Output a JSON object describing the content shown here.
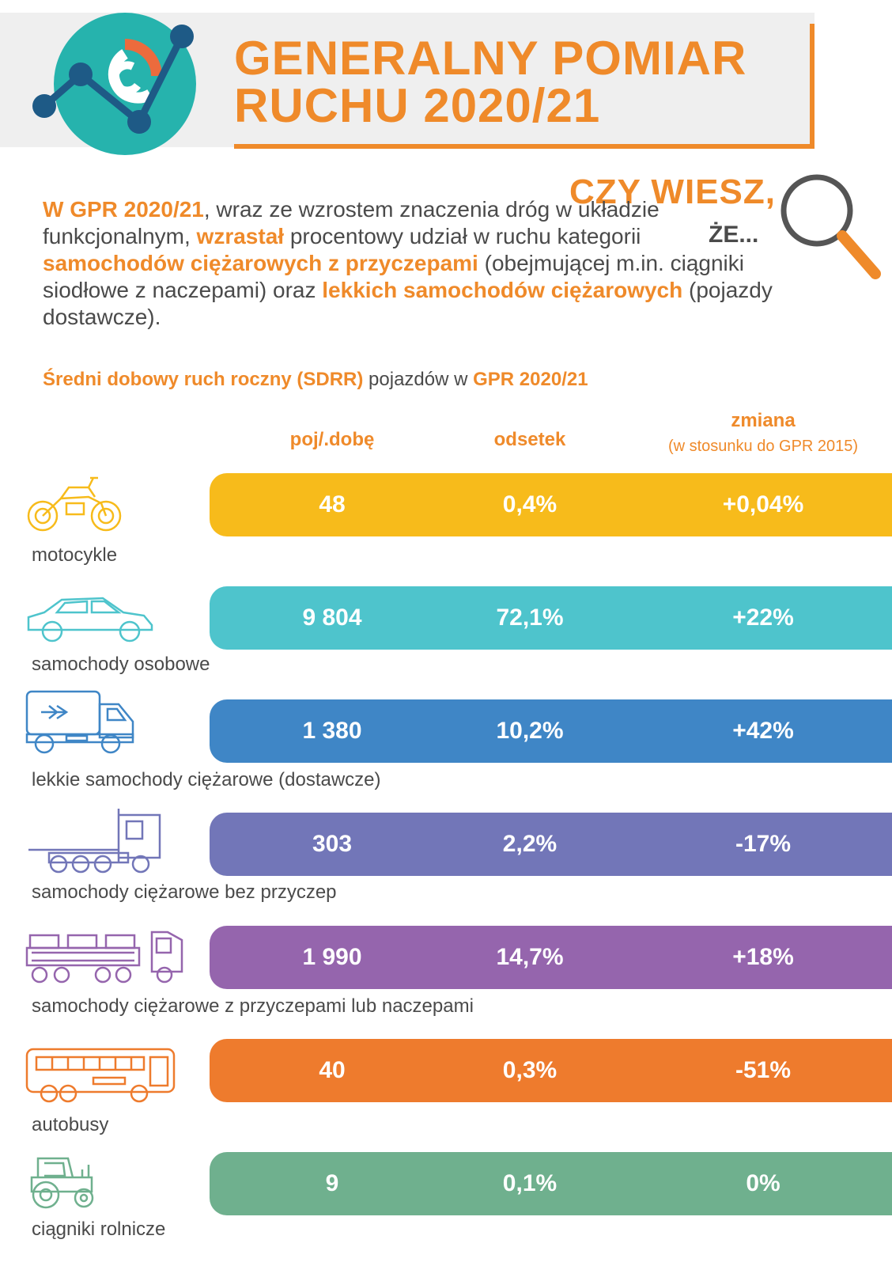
{
  "header": {
    "title_line1": "GENERALNY POMIAR",
    "title_line2": "RUCHU 2020/21"
  },
  "callout": {
    "line1": "CZY WIESZ,",
    "line2": "ŻE..."
  },
  "intro": {
    "p1": "W GPR 2020/21",
    "p2": ", wraz ze wzrostem znaczenia dróg w układzie funkcjonalnym, ",
    "p3": "wzrastał",
    "p4": " procentowy udział w ruchu kategorii ",
    "p5": "samochodów ciężarowych z przyczepami",
    "p6": " (obejmującej m.in. ciągniki siodłowe z naczepami) oraz ",
    "p7": "lekkich samochodów ciężarowych",
    "p8": " (pojazdy dostawcze)."
  },
  "subtitle": {
    "s1": "Średni dobowy ruch roczny (SDRR)",
    "s2": " pojazdów w ",
    "s3": "GPR 2020/21"
  },
  "columns": {
    "col1": "poj/.dobę",
    "col2": "odsetek",
    "col3": "zmiana",
    "col3_sub": "(w stosunku do GPR 2015)"
  },
  "colors": {
    "accent": "#ef8a2a",
    "motocykle": "#f7bb1b",
    "osobowe": "#4ec4cc",
    "lekkie": "#3f86c6",
    "bez_przyczep": "#7276b8",
    "z_przyczepami": "#9565ad",
    "autobusy": "#ee7b2d",
    "ciagniki": "#6fb08e"
  },
  "rows": [
    {
      "label": "motocykle",
      "count": "48",
      "share": "0,4%",
      "change": "+0,04%",
      "icon": "motorcycle-icon"
    },
    {
      "label": "samochody osobowe",
      "count": "9 804",
      "share": "72,1%",
      "change": "+22%",
      "icon": "car-icon"
    },
    {
      "label": "lekkie samochody ciężarowe (dostawcze)",
      "count": "1 380",
      "share": "10,2%",
      "change": "+42%",
      "icon": "delivery-truck-icon"
    },
    {
      "label": "samochody ciężarowe bez przyczep",
      "count": "303",
      "share": "2,2%",
      "change": "-17%",
      "icon": "truck-icon"
    },
    {
      "label": "samochody ciężarowe z przyczepami lub naczepami",
      "count": "1 990",
      "share": "14,7%",
      "change": "+18%",
      "icon": "truck-trailer-icon"
    },
    {
      "label": "autobusy",
      "count": "40",
      "share": "0,3%",
      "change": "-51%",
      "icon": "bus-icon"
    },
    {
      "label": "ciągniki rolnicze",
      "count": "9",
      "share": "0,1%",
      "change": "0%",
      "icon": "tractor-icon"
    }
  ]
}
